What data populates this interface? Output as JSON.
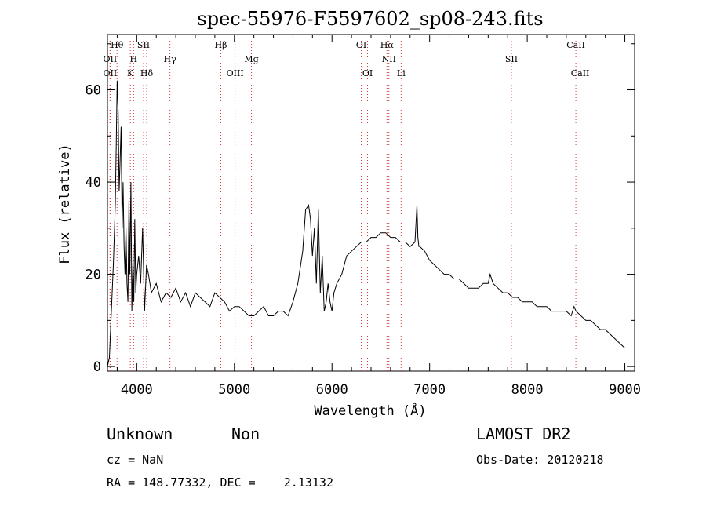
{
  "title": "spec-55976-F5597602_sp08-243.fits",
  "chart_data": {
    "type": "line",
    "title": "spec-55976-F5597602_sp08-243.fits",
    "xlabel": "Wavelength (Å)",
    "ylabel": "Flux (relative)",
    "xlim": [
      3700,
      9100
    ],
    "ylim": [
      -1,
      72
    ],
    "xticks": [
      4000,
      5000,
      6000,
      7000,
      8000,
      9000
    ],
    "yticks": [
      0,
      20,
      40,
      60
    ],
    "grid": false,
    "series": [
      {
        "color": "#000000",
        "x": [
          3700,
          3720,
          3740,
          3760,
          3780,
          3790,
          3800,
          3810,
          3820,
          3830,
          3840,
          3850,
          3860,
          3870,
          3880,
          3890,
          3900,
          3910,
          3920,
          3930,
          3940,
          3950,
          3960,
          3970,
          3980,
          3990,
          4000,
          4020,
          4040,
          4060,
          4080,
          4100,
          4120,
          4150,
          4200,
          4250,
          4300,
          4350,
          4400,
          4450,
          4500,
          4550,
          4600,
          4650,
          4700,
          4750,
          4800,
          4850,
          4900,
          4950,
          5000,
          5050,
          5100,
          5150,
          5200,
          5250,
          5300,
          5350,
          5400,
          5450,
          5500,
          5550,
          5600,
          5650,
          5700,
          5730,
          5760,
          5780,
          5800,
          5820,
          5840,
          5860,
          5880,
          5900,
          5920,
          5940,
          5960,
          5980,
          6000,
          6020,
          6050,
          6100,
          6150,
          6200,
          6250,
          6300,
          6350,
          6400,
          6450,
          6500,
          6550,
          6600,
          6650,
          6700,
          6750,
          6800,
          6850,
          6870,
          6880,
          6890,
          6900,
          6950,
          7000,
          7050,
          7100,
          7150,
          7200,
          7250,
          7300,
          7350,
          7400,
          7450,
          7500,
          7550,
          7600,
          7620,
          7650,
          7700,
          7750,
          7800,
          7850,
          7900,
          7950,
          8000,
          8050,
          8100,
          8150,
          8200,
          8250,
          8300,
          8350,
          8400,
          8450,
          8480,
          8500,
          8550,
          8600,
          8650,
          8700,
          8750,
          8800,
          8850,
          8900,
          8950,
          9000
        ],
        "y": [
          0,
          2,
          12,
          22,
          35,
          48,
          62,
          55,
          38,
          45,
          52,
          30,
          40,
          26,
          20,
          30,
          18,
          14,
          36,
          20,
          40,
          12,
          22,
          14,
          32,
          16,
          20,
          24,
          18,
          30,
          12,
          22,
          20,
          16,
          18,
          14,
          16,
          15,
          17,
          14,
          16,
          13,
          16,
          15,
          14,
          13,
          16,
          15,
          14,
          12,
          13,
          13,
          12,
          11,
          11,
          12,
          13,
          11,
          11,
          12,
          12,
          11,
          14,
          18,
          25,
          34,
          35,
          32,
          24,
          30,
          18,
          34,
          16,
          24,
          12,
          14,
          18,
          14,
          12,
          16,
          18,
          20,
          24,
          25,
          26,
          27,
          27,
          28,
          28,
          29,
          29,
          28,
          28,
          27,
          27,
          26,
          27,
          35,
          28,
          26,
          26,
          25,
          23,
          22,
          21,
          20,
          20,
          19,
          19,
          18,
          17,
          17,
          17,
          18,
          18,
          20,
          18,
          17,
          16,
          16,
          15,
          15,
          14,
          14,
          14,
          13,
          13,
          13,
          12,
          12,
          12,
          12,
          11,
          13,
          12,
          11,
          10,
          10,
          9,
          8,
          8,
          7,
          6,
          5,
          4
        ]
      }
    ],
    "lines": [
      {
        "label": "OII",
        "wave": 3727,
        "row": 2
      },
      {
        "label": "Hθ",
        "wave": 3798,
        "row": 1
      },
      {
        "label": "OII",
        "wave": 3727,
        "row": 3
      },
      {
        "label": "H",
        "wave": 3968,
        "row": 2
      },
      {
        "label": "SII",
        "wave": 4070,
        "row": 1
      },
      {
        "label": "K",
        "wave": 3934,
        "row": 3
      },
      {
        "label": "Hδ",
        "wave": 4102,
        "row": 3
      },
      {
        "label": "Hγ",
        "wave": 4340,
        "row": 2
      },
      {
        "label": "Hβ",
        "wave": 4861,
        "row": 1
      },
      {
        "label": "OIII",
        "wave": 5007,
        "row": 3
      },
      {
        "label": "Mg",
        "wave": 5175,
        "row": 2
      },
      {
        "label": "OI",
        "wave": 6300,
        "row": 1
      },
      {
        "label": "OI",
        "wave": 6364,
        "row": 3
      },
      {
        "label": "Hα",
        "wave": 6563,
        "row": 1
      },
      {
        "label": "NII",
        "wave": 6583,
        "row": 2
      },
      {
        "label": "Li",
        "wave": 6708,
        "row": 3
      },
      {
        "label": "SII",
        "wave": 7838,
        "row": 2
      },
      {
        "label": "CaII",
        "wave": 8498,
        "row": 1
      },
      {
        "label": "CaII",
        "wave": 8542,
        "row": 3
      }
    ]
  },
  "info": {
    "class": "Unknown",
    "subclass": "Non",
    "cz": "cz = NaN",
    "radec": "RA = 148.77332, DEC =    2.13132",
    "survey": "LAMOST DR2",
    "obsdate": "Obs-Date: 20120218"
  }
}
